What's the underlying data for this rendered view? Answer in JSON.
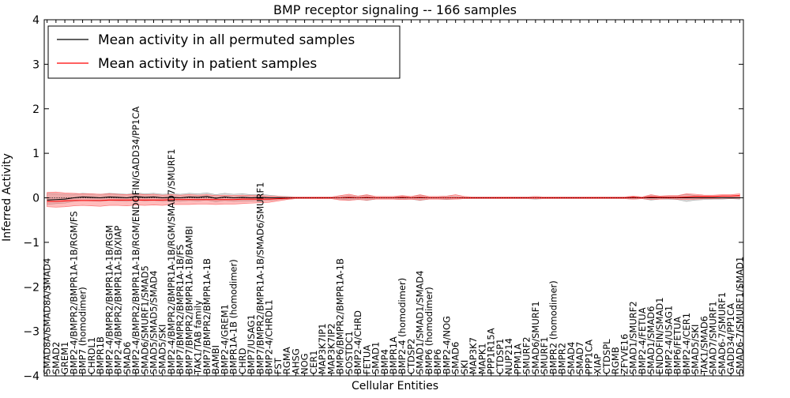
{
  "chart_data": {
    "type": "line",
    "title": "BMP receptor signaling -- 166 samples",
    "xlabel": "Cellular Entities",
    "ylabel": "Inferred Activity",
    "ylim": [
      -4,
      4
    ],
    "yticks": [
      -4,
      -3,
      -2,
      -1,
      0,
      1,
      2,
      3,
      4
    ],
    "ytick_labels": [
      "−4",
      "−3",
      "−2",
      "−1",
      "0",
      "1",
      "2",
      "3",
      "4"
    ],
    "legend_position": "top-left",
    "categories": [
      "SMAD8A/SMAD8A/SMAD4",
      "SMAD2",
      "GREM1",
      "BMP2-4/BMPR2/BMPR1A-1B/RGM/FS",
      "BMP7 (homodimer)",
      "CHRDL1",
      "BMPR1B",
      "BMP2-4/BMPR2/BMPR1A-1B/RGM",
      "BMP2-4/BMPR2/BMPR1A-1B/XIAP",
      "SMAD6",
      "BMP2-4/BMPR2/BMPR1A-1B/RGM/ENDOFIN/GADD34/PP1CA",
      "SMAD6/SMURF1/SMAD5",
      "SMAD5/SMAD5/SMAD4",
      "SMAD5/SKI",
      "BMP2-4/BMPR2/BMPR1A-1B/RGM/SMAD7/SMURF1",
      "BMP7/BMPR2/BMPR1A-1B/FS",
      "BMP7/BMPR2/BMPR1A-1B/BAMBI",
      "TAK1/TAB family",
      "BMP7/BMPR2/BMPR1A-1B",
      "BAMBI",
      "BMP2-4/GREM1",
      "BMPR1A-1B (homodimer)",
      "CHRD",
      "BMP7/USAG1",
      "BMP7/BMPR2/BMPR1A-1B/SMAD6/SMURF1",
      "BMP2-4/CHRDL1",
      "FST",
      "RGMA",
      "AHSG",
      "NOG",
      "CER1",
      "MAP3K7IP1",
      "MAP3K7IP2",
      "BMP6/BMPR2/BMPR1A-1B",
      "SOSTDC1",
      "BMP2-4/CHRD",
      "FETUA",
      "SMAD1",
      "BMP4",
      "BMPR1A",
      "BMP2-4 (homodimer)",
      "CTDSP2",
      "SMAD1/SMAD1/SMAD4",
      "BMP6 (homodimer)",
      "BMP6",
      "BMP2-4/NOG",
      "SMAD6",
      "SKI",
      "MAP3K7",
      "MAPK1",
      "PPP1R15A",
      "CTDSP1",
      "NUP214",
      "PPM1A",
      "SMURF2",
      "SMAD6/SMURF1",
      "SMURF1",
      "BMPR2 (homodimer)",
      "BMPR2",
      "SMAD4",
      "SMAD7",
      "PPP1CA",
      "XIAP",
      "CTDSPL",
      "RGMB",
      "ZFYVE16",
      "SMAD1/SMURF2",
      "BMP2-4/FETUA",
      "SMAD1/SMAD6",
      "ENDOFIN/SMAD1",
      "BMP2-4/USAG1",
      "BMP6/FETUA",
      "BMP2-4/CER1",
      "SMAD5/SKI",
      "TAK1/SMAD6",
      "SMAD7/SMURF1",
      "SMAD6-7/SMURF1",
      "GADD34/PP1CA",
      "SMAD6-7/SMURF1/SMAD1"
    ],
    "series": [
      {
        "name": "Mean activity in all permuted samples",
        "color": "#000000",
        "values": [
          -0.05,
          -0.04,
          -0.03,
          0.0,
          0.02,
          0.01,
          0.0,
          0.02,
          0.01,
          0.0,
          0.03,
          0.01,
          0.02,
          0.0,
          0.01,
          0.0,
          0.02,
          0.01,
          0.03,
          -0.01,
          0.02,
          0.0,
          0.01,
          0.0,
          0.01,
          0.0,
          0.0,
          0.0,
          0.0,
          0.0,
          0.0,
          0.0,
          0.0,
          0.0,
          0.0,
          0.0,
          0.0,
          0.0,
          0.0,
          0.0,
          0.0,
          0.0,
          0.0,
          0.0,
          0.0,
          0.0,
          0.0,
          0.0,
          0.0,
          0.0,
          0.0,
          0.0,
          0.0,
          0.0,
          0.0,
          0.0,
          0.0,
          0.0,
          0.0,
          0.0,
          0.0,
          0.0,
          0.0,
          0.0,
          0.0,
          0.0,
          0.0,
          0.0,
          0.0,
          0.0,
          0.0,
          0.0,
          0.0,
          0.0,
          0.0,
          0.0,
          0.0,
          0.0,
          0.0
        ],
        "band_lower": [
          -0.15,
          -0.13,
          -0.12,
          -0.08,
          -0.06,
          -0.07,
          -0.08,
          -0.06,
          -0.07,
          -0.08,
          -0.05,
          -0.07,
          -0.06,
          -0.08,
          -0.07,
          -0.08,
          -0.06,
          -0.07,
          -0.05,
          -0.09,
          -0.06,
          -0.08,
          -0.07,
          -0.07,
          -0.06,
          -0.06,
          -0.04,
          -0.03,
          -0.02,
          -0.02,
          -0.02,
          -0.02,
          -0.02,
          -0.03,
          -0.05,
          -0.03,
          -0.06,
          -0.03,
          -0.03,
          -0.03,
          -0.04,
          -0.03,
          -0.06,
          -0.03,
          -0.03,
          -0.04,
          -0.03,
          -0.02,
          -0.02,
          -0.02,
          -0.02,
          -0.02,
          -0.02,
          -0.02,
          -0.02,
          -0.03,
          -0.02,
          -0.02,
          -0.02,
          -0.02,
          -0.02,
          -0.02,
          -0.02,
          -0.02,
          -0.02,
          -0.02,
          -0.03,
          -0.02,
          -0.05,
          -0.03,
          -0.03,
          -0.04,
          -0.08,
          -0.05,
          -0.04,
          -0.03,
          -0.03,
          -0.02,
          -0.03
        ],
        "band_upper": [
          0.1,
          0.09,
          0.08,
          0.08,
          0.1,
          0.09,
          0.08,
          0.1,
          0.09,
          0.08,
          0.11,
          0.09,
          0.1,
          0.08,
          0.09,
          0.08,
          0.1,
          0.09,
          0.11,
          0.07,
          0.1,
          0.08,
          0.09,
          0.07,
          0.08,
          0.06,
          0.04,
          0.03,
          0.02,
          0.02,
          0.02,
          0.02,
          0.02,
          0.03,
          0.05,
          0.03,
          0.06,
          0.03,
          0.03,
          0.03,
          0.04,
          0.03,
          0.06,
          0.03,
          0.03,
          0.04,
          0.03,
          0.02,
          0.02,
          0.02,
          0.02,
          0.02,
          0.02,
          0.02,
          0.02,
          0.03,
          0.02,
          0.02,
          0.02,
          0.02,
          0.02,
          0.02,
          0.02,
          0.02,
          0.02,
          0.02,
          0.03,
          0.02,
          0.05,
          0.03,
          0.03,
          0.04,
          0.08,
          0.05,
          0.04,
          0.03,
          0.03,
          0.02,
          0.03
        ],
        "band_color": "#a0a0a0"
      },
      {
        "name": "Mean activity in patient samples",
        "color": "#ff0000",
        "values": [
          -0.08,
          -0.08,
          -0.07,
          -0.06,
          -0.06,
          -0.06,
          -0.06,
          -0.05,
          -0.05,
          -0.05,
          -0.05,
          -0.05,
          -0.05,
          -0.05,
          -0.04,
          -0.04,
          -0.04,
          -0.04,
          -0.04,
          -0.04,
          -0.04,
          -0.04,
          -0.03,
          -0.03,
          -0.03,
          -0.03,
          -0.02,
          -0.01,
          0.0,
          0.0,
          0.0,
          0.0,
          0.0,
          0.0,
          0.01,
          0.0,
          0.01,
          0.0,
          0.0,
          0.0,
          0.01,
          0.0,
          0.01,
          0.0,
          0.0,
          0.0,
          0.0,
          0.0,
          0.0,
          0.0,
          0.0,
          0.0,
          0.0,
          0.0,
          0.0,
          0.0,
          0.0,
          0.0,
          0.0,
          0.0,
          0.0,
          0.0,
          0.0,
          0.0,
          0.0,
          0.0,
          0.01,
          0.0,
          0.02,
          0.01,
          0.01,
          0.01,
          0.02,
          0.03,
          0.03,
          0.03,
          0.04,
          0.04,
          0.05
        ],
        "band_lower": [
          -0.2,
          -0.21,
          -0.2,
          -0.18,
          -0.17,
          -0.18,
          -0.19,
          -0.17,
          -0.17,
          -0.18,
          -0.16,
          -0.17,
          -0.16,
          -0.17,
          -0.15,
          -0.15,
          -0.15,
          -0.14,
          -0.14,
          -0.15,
          -0.14,
          -0.14,
          -0.13,
          -0.12,
          -0.11,
          -0.1,
          -0.07,
          -0.04,
          -0.02,
          -0.02,
          -0.02,
          -0.02,
          -0.02,
          -0.05,
          -0.06,
          -0.04,
          -0.05,
          -0.03,
          -0.03,
          -0.03,
          -0.04,
          -0.03,
          -0.05,
          -0.03,
          -0.03,
          -0.03,
          -0.03,
          -0.02,
          -0.02,
          -0.02,
          -0.02,
          -0.02,
          -0.02,
          -0.02,
          -0.02,
          -0.02,
          -0.02,
          -0.02,
          -0.02,
          -0.02,
          -0.02,
          -0.02,
          -0.02,
          -0.02,
          -0.02,
          -0.02,
          -0.03,
          -0.02,
          -0.04,
          -0.03,
          -0.02,
          -0.03,
          -0.04,
          -0.03,
          -0.02,
          -0.02,
          -0.01,
          -0.01,
          -0.01
        ],
        "band_upper": [
          0.12,
          0.13,
          0.11,
          0.1,
          0.09,
          0.09,
          0.08,
          0.09,
          0.08,
          0.07,
          0.09,
          0.07,
          0.08,
          0.06,
          0.07,
          0.06,
          0.07,
          0.06,
          0.07,
          0.05,
          0.06,
          0.05,
          0.06,
          0.05,
          0.05,
          0.04,
          0.03,
          0.02,
          0.02,
          0.02,
          0.02,
          0.02,
          0.02,
          0.05,
          0.08,
          0.04,
          0.07,
          0.03,
          0.03,
          0.03,
          0.05,
          0.03,
          0.07,
          0.03,
          0.03,
          0.04,
          0.07,
          0.03,
          0.02,
          0.02,
          0.02,
          0.02,
          0.02,
          0.02,
          0.02,
          0.03,
          0.02,
          0.02,
          0.02,
          0.02,
          0.02,
          0.02,
          0.02,
          0.02,
          0.02,
          0.02,
          0.04,
          0.02,
          0.07,
          0.04,
          0.05,
          0.05,
          0.09,
          0.08,
          0.06,
          0.06,
          0.07,
          0.07,
          0.09
        ],
        "band_color": "#ff6a6a"
      }
    ],
    "reference_line": 0
  }
}
